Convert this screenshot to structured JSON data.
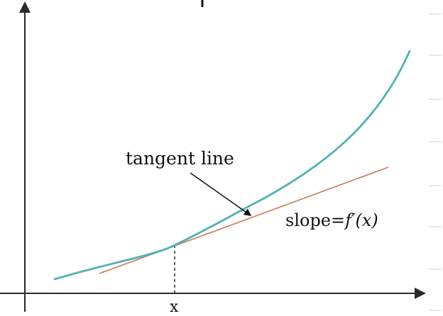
{
  "labels": {
    "tangent": "tangent line",
    "slope_prefix": "slope=",
    "slope_expr": "f′(x)",
    "x_tick": "x"
  },
  "colors": {
    "curve": "#4fb2b5",
    "tangent": "#c9876d",
    "axes": "#2a2a2a"
  }
}
